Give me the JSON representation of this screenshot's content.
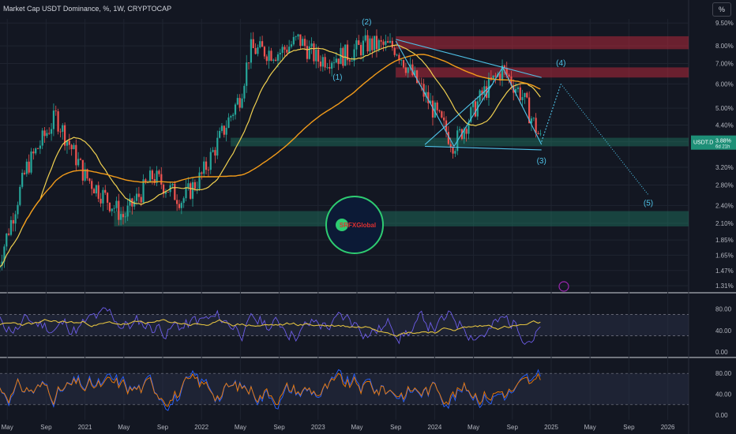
{
  "header": {
    "title": "Market Cap USDT Dominance, %, 1W, CRYPTOCAP"
  },
  "scale_button": {
    "label": "%"
  },
  "colors": {
    "background": "#131722",
    "grid": "#1f2430",
    "up": "#26a69a",
    "down": "#ef5350",
    "ma_fast": "#f0d050",
    "ma_slow": "#f29b1a",
    "pattern": "#4fc3e8",
    "zone_red": "#b2283a",
    "zone_green": "#1e7a64",
    "osc_line": "#6c5ce7",
    "signal": "#e0c040",
    "stoch_k": "#2962ff",
    "stoch_d": "#f57c00"
  },
  "price_axis": {
    "ticks": [
      "9.50%",
      "8.00%",
      "7.00%",
      "6.00%",
      "5.00%",
      "4.40%",
      "3.88%",
      "3.20%",
      "2.80%",
      "2.40%",
      "2.10%",
      "1.85%",
      "1.65%",
      "1.47%",
      "1.31%"
    ],
    "current_label": "USDT.D",
    "current_value": "3.88%",
    "countdown": "6d 21h"
  },
  "time_axis": [
    "May",
    "Sep",
    "2021",
    "May",
    "Sep",
    "2022",
    "May",
    "Sep",
    "2023",
    "May",
    "Sep",
    "2024",
    "May",
    "Sep",
    "2025",
    "May",
    "Sep",
    "2026"
  ],
  "wave_labels": [
    "(1)",
    "(2)",
    "(3)",
    "(4)",
    "(5)"
  ],
  "logo": {
    "text": "SRFXGlobal"
  },
  "osc1_axis": [
    "80.00",
    "40.00",
    "0.00"
  ],
  "osc2_axis": [
    "80.00",
    "40.00",
    "0.00"
  ],
  "chart_data": {
    "type": "candlestick",
    "symbol": "USDT.D",
    "timeframe": "1W",
    "yscale": "log",
    "ylim": [
      1.25,
      9.8
    ],
    "grid": true,
    "series_hint": [
      {
        "date": "2020-04",
        "value": 1.5
      },
      {
        "date": "2020-07",
        "value": 3.2
      },
      {
        "date": "2020-10",
        "value": 4.7
      },
      {
        "date": "2021-01",
        "value": 3.0
      },
      {
        "date": "2021-05",
        "value": 2.2
      },
      {
        "date": "2021-08",
        "value": 3.0
      },
      {
        "date": "2021-11",
        "value": 2.5
      },
      {
        "date": "2022-01",
        "value": 3.0
      },
      {
        "date": "2022-05",
        "value": 5.5
      },
      {
        "date": "2022-06",
        "value": 7.8
      },
      {
        "date": "2022-09",
        "value": 7.6
      },
      {
        "date": "2022-11",
        "value": 8.4
      },
      {
        "date": "2023-01",
        "value": 7.2
      },
      {
        "date": "2023-04",
        "value": 7.5
      },
      {
        "date": "2023-06",
        "value": 8.1
      },
      {
        "date": "2023-09",
        "value": 7.9
      },
      {
        "date": "2023-12",
        "value": 5.5
      },
      {
        "date": "2024-03",
        "value": 3.8
      },
      {
        "date": "2024-06",
        "value": 5.6
      },
      {
        "date": "2024-08",
        "value": 6.7
      },
      {
        "date": "2024-10",
        "value": 5.5
      },
      {
        "date": "2024-12",
        "value": 3.88
      }
    ],
    "projection": [
      {
        "date": "2024-12",
        "value": 3.88
      },
      {
        "date": "2025-02",
        "value": 6.0
      },
      {
        "date": "2025-11",
        "value": 2.6
      }
    ],
    "zones": [
      {
        "color": "red",
        "from": 7.8,
        "to": 8.6
      },
      {
        "color": "red",
        "from": 6.3,
        "to": 6.8
      },
      {
        "color": "green",
        "from": 3.75,
        "to": 4.0
      },
      {
        "color": "green",
        "from": 2.05,
        "to": 2.3
      }
    ],
    "moving_averages": [
      "fast",
      "slow"
    ]
  }
}
